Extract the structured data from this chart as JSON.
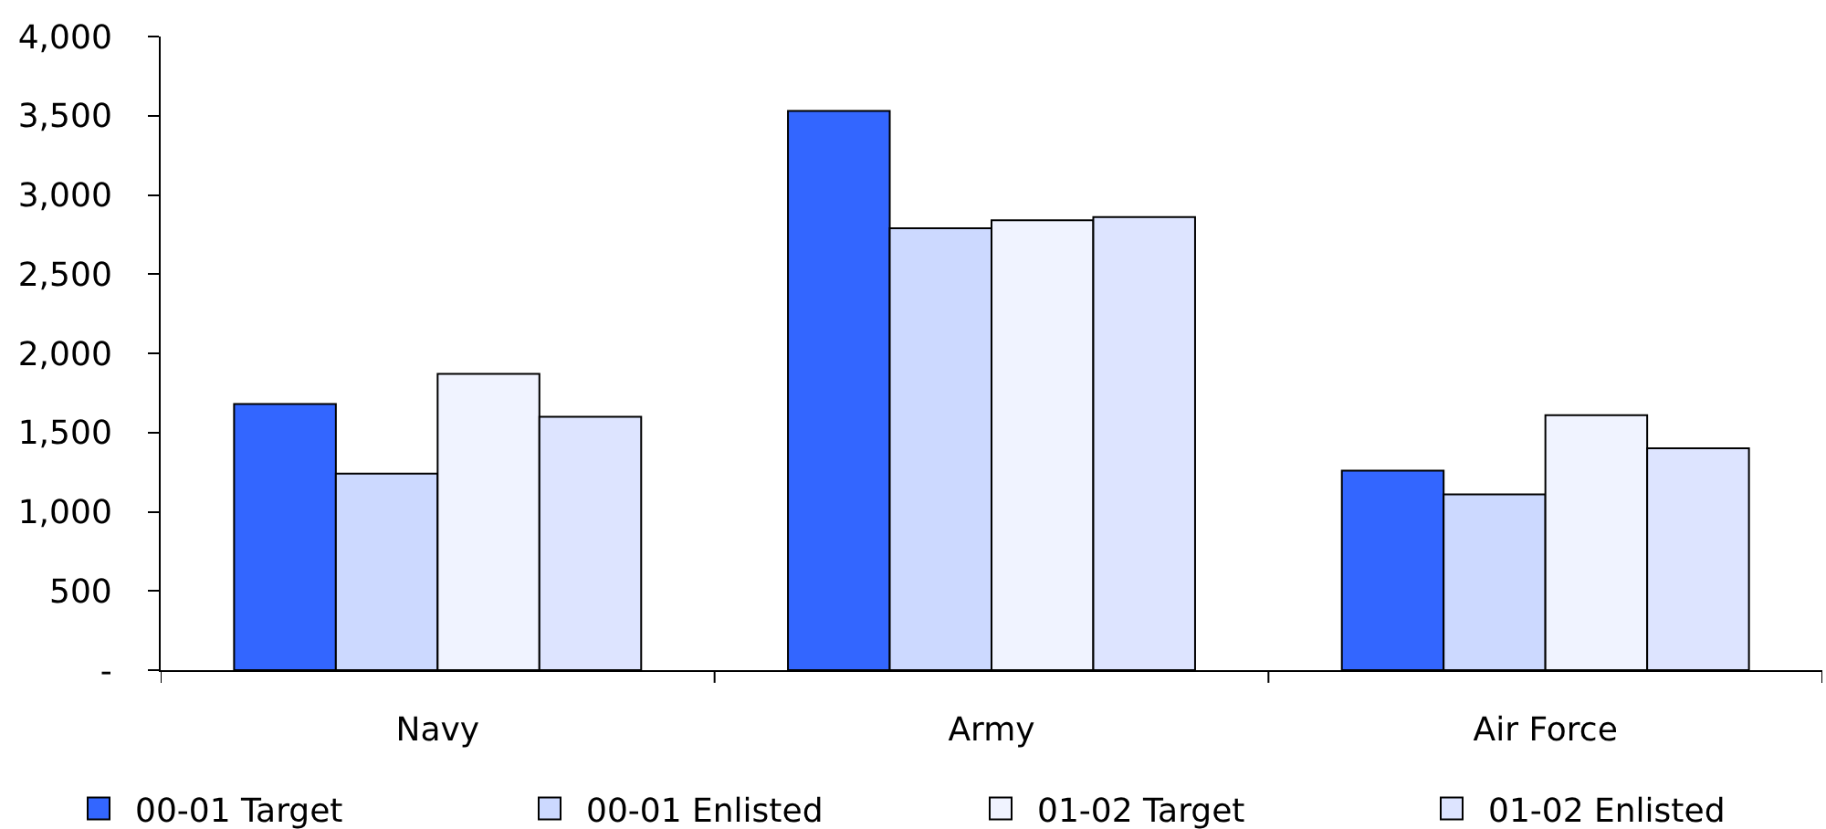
{
  "chart_data": {
    "type": "bar",
    "categories": [
      "Navy",
      "Army",
      "Air Force"
    ],
    "series": [
      {
        "name": "00-01 Target",
        "color": "#3366ff",
        "values": [
          1680,
          3530,
          1260
        ]
      },
      {
        "name": "00-01 Enlisted",
        "color": "#ccd9ff",
        "values": [
          1240,
          2790,
          1110
        ]
      },
      {
        "name": "01-02 Target",
        "color": "#f0f3ff",
        "values": [
          1870,
          2840,
          1610
        ]
      },
      {
        "name": "01-02 Enlisted",
        "color": "#dde4ff",
        "values": [
          1600,
          2860,
          1400
        ]
      }
    ],
    "ylim": [
      0,
      4000
    ],
    "yticks": [
      {
        "value": 0,
        "label": "-"
      },
      500,
      {
        "value": 1000,
        "label": "1,000"
      },
      {
        "value": 1500,
        "label": "1,500"
      },
      {
        "value": 2000,
        "label": "2,000"
      },
      {
        "value": 2500,
        "label": "2,500"
      },
      {
        "value": 3000,
        "label": "3,000"
      },
      {
        "value": 3500,
        "label": "3,500"
      },
      {
        "value": 4000,
        "label": "4,000"
      }
    ],
    "grid": false,
    "legend": "bottom"
  }
}
